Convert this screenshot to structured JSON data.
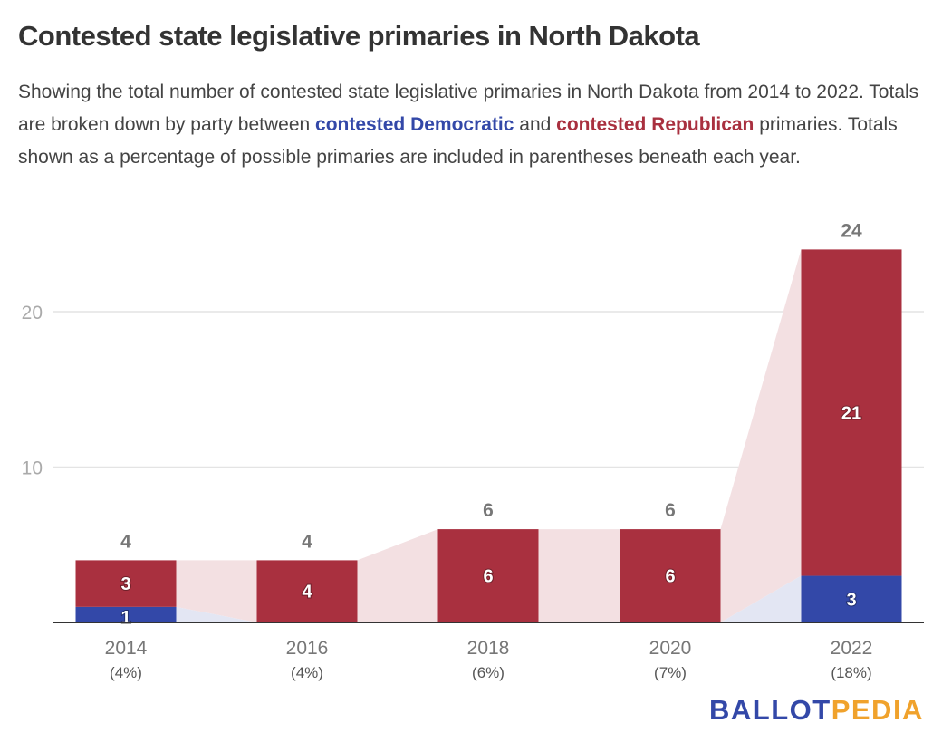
{
  "title": "Contested state legislative primaries in North Dakota",
  "description": {
    "part1": "Showing the total number of contested state legislative primaries in North Dakota from 2014 to 2022. Totals are broken down by party between ",
    "dem_label": "contested Democratic",
    "part2": " and ",
    "rep_label": "contested Republican",
    "part3": " primaries. Totals shown as a percentage of possible primaries are included in parentheses beneath each year."
  },
  "logo": {
    "left": "BALLOT",
    "right": "PEDIA"
  },
  "colors": {
    "democratic": "#3348a8",
    "republican": "#a9303f",
    "republican_flow": "#f3e0e2",
    "democratic_flow": "#e3e6f3",
    "logo_orange": "#f0a22c"
  },
  "chart_data": {
    "type": "bar",
    "stacked": true,
    "title": "Contested state legislative primaries in North Dakota",
    "xlabel": "",
    "ylabel": "",
    "ylim": [
      0,
      25
    ],
    "yticks": [
      10,
      20
    ],
    "grid": true,
    "categories": [
      "2014",
      "2016",
      "2018",
      "2020",
      "2022"
    ],
    "category_sublabels": [
      "(4%)",
      "(4%)",
      "(6%)",
      "(7%)",
      "(18%)"
    ],
    "series": [
      {
        "name": "Contested Democratic",
        "values": [
          1,
          0,
          0,
          0,
          3
        ]
      },
      {
        "name": "Contested Republican",
        "values": [
          3,
          4,
          6,
          6,
          21
        ]
      }
    ],
    "totals": [
      4,
      4,
      6,
      6,
      24
    ]
  }
}
